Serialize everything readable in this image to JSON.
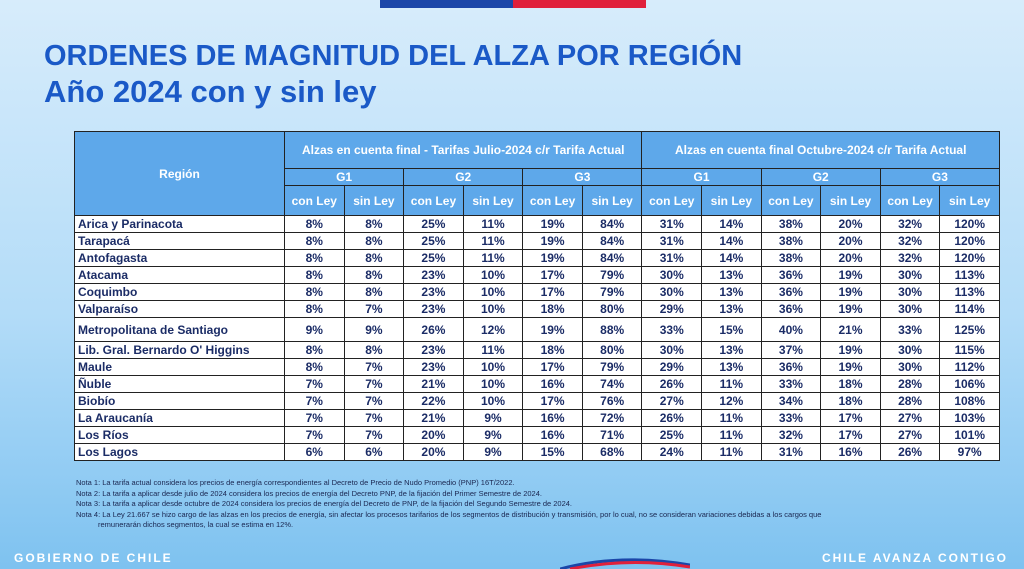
{
  "title_line1": "ORDENES DE MAGNITUD DEL ALZA POR REGIÓN",
  "title_line2": "Año 2024 con y sin ley",
  "table": {
    "region_header": "Región",
    "group1_header": "Alzas en cuenta final - Tarifas Julio-2024 c/r Tarifa Actual",
    "group2_header": "Alzas en cuenta final Octubre-2024 c/r Tarifa Actual",
    "sub_groups": [
      "G1",
      "G2",
      "G3",
      "G1",
      "G2",
      "G3"
    ],
    "col_headers": [
      "con Ley",
      "sin Ley",
      "con Ley",
      "sin Ley",
      "con Ley",
      "sin Ley",
      "con Ley",
      "sin Ley",
      "con Ley",
      "sin Ley",
      "con Ley",
      "sin Ley"
    ],
    "rows": [
      {
        "region": "Arica y Parinacota",
        "values": [
          "8%",
          "8%",
          "25%",
          "11%",
          "19%",
          "84%",
          "31%",
          "14%",
          "38%",
          "20%",
          "32%",
          "120%"
        ]
      },
      {
        "region": "Tarapacá",
        "values": [
          "8%",
          "8%",
          "25%",
          "11%",
          "19%",
          "84%",
          "31%",
          "14%",
          "38%",
          "20%",
          "32%",
          "120%"
        ]
      },
      {
        "region": "Antofagasta",
        "values": [
          "8%",
          "8%",
          "25%",
          "11%",
          "19%",
          "84%",
          "31%",
          "14%",
          "38%",
          "20%",
          "32%",
          "120%"
        ]
      },
      {
        "region": "Atacama",
        "values": [
          "8%",
          "8%",
          "23%",
          "10%",
          "17%",
          "79%",
          "30%",
          "13%",
          "36%",
          "19%",
          "30%",
          "113%"
        ]
      },
      {
        "region": "Coquimbo",
        "values": [
          "8%",
          "8%",
          "23%",
          "10%",
          "17%",
          "79%",
          "30%",
          "13%",
          "36%",
          "19%",
          "30%",
          "113%"
        ]
      },
      {
        "region": "Valparaíso",
        "values": [
          "8%",
          "7%",
          "23%",
          "10%",
          "18%",
          "80%",
          "29%",
          "13%",
          "36%",
          "19%",
          "30%",
          "114%"
        ]
      },
      {
        "region": "Metropolitana de Santiago",
        "values": [
          "9%",
          "9%",
          "26%",
          "12%",
          "19%",
          "88%",
          "33%",
          "15%",
          "40%",
          "21%",
          "33%",
          "125%"
        ]
      },
      {
        "region": "Lib. Gral. Bernardo O' Higgins",
        "values": [
          "8%",
          "8%",
          "23%",
          "11%",
          "18%",
          "80%",
          "30%",
          "13%",
          "37%",
          "19%",
          "30%",
          "115%"
        ]
      },
      {
        "region": "Maule",
        "values": [
          "8%",
          "7%",
          "23%",
          "10%",
          "17%",
          "79%",
          "29%",
          "13%",
          "36%",
          "19%",
          "30%",
          "112%"
        ]
      },
      {
        "region": "Ñuble",
        "values": [
          "7%",
          "7%",
          "21%",
          "10%",
          "16%",
          "74%",
          "26%",
          "11%",
          "33%",
          "18%",
          "28%",
          "106%"
        ]
      },
      {
        "region": "Biobío",
        "values": [
          "7%",
          "7%",
          "22%",
          "10%",
          "17%",
          "76%",
          "27%",
          "12%",
          "34%",
          "18%",
          "28%",
          "108%"
        ]
      },
      {
        "region": "La Araucanía",
        "values": [
          "7%",
          "7%",
          "21%",
          "9%",
          "16%",
          "72%",
          "26%",
          "11%",
          "33%",
          "17%",
          "27%",
          "103%"
        ]
      },
      {
        "region": "Los Ríos",
        "values": [
          "7%",
          "7%",
          "20%",
          "9%",
          "16%",
          "71%",
          "25%",
          "11%",
          "32%",
          "17%",
          "27%",
          "101%"
        ]
      },
      {
        "region": "Los Lagos",
        "values": [
          "6%",
          "6%",
          "20%",
          "9%",
          "15%",
          "68%",
          "24%",
          "11%",
          "31%",
          "16%",
          "26%",
          "97%"
        ]
      }
    ]
  },
  "notes": [
    "Nota 1: La tarifa actual considera los precios de energía correspondientes al Decreto de Precio de Nudo Promedio (PNP) 16T/2022.",
    "Nota 2: La tarifa a aplicar desde julio de 2024 considera los precios de energía del Decreto PNP, de la fijación del Primer Semestre de 2024.",
    "Nota 3: La tarifa a aplicar desde octubre de 2024 considera los precios de energía del Decreto de PNP, de la fijación del Segundo Semestre de 2024.",
    "Nota 4: La Ley 21.667 se hizo cargo de las alzas en los precios de energía, sin afectar los procesos tarifarios de los segmentos de distribución y transmisión, por lo cual, no se consideran variaciones debidas a los cargos que",
    "remunerarán dichos segmentos, la cual se estima en 12%."
  ],
  "footer": {
    "left": "GOBIERNO DE CHILE",
    "right": "CHILE AVANZA CONTIGO"
  },
  "colors": {
    "title": "#1a59c7",
    "header_bg": "#5ea8ea",
    "cell_text": "#1b2c66",
    "flag_blue": "#1b46a8",
    "flag_red": "#e0203b"
  }
}
